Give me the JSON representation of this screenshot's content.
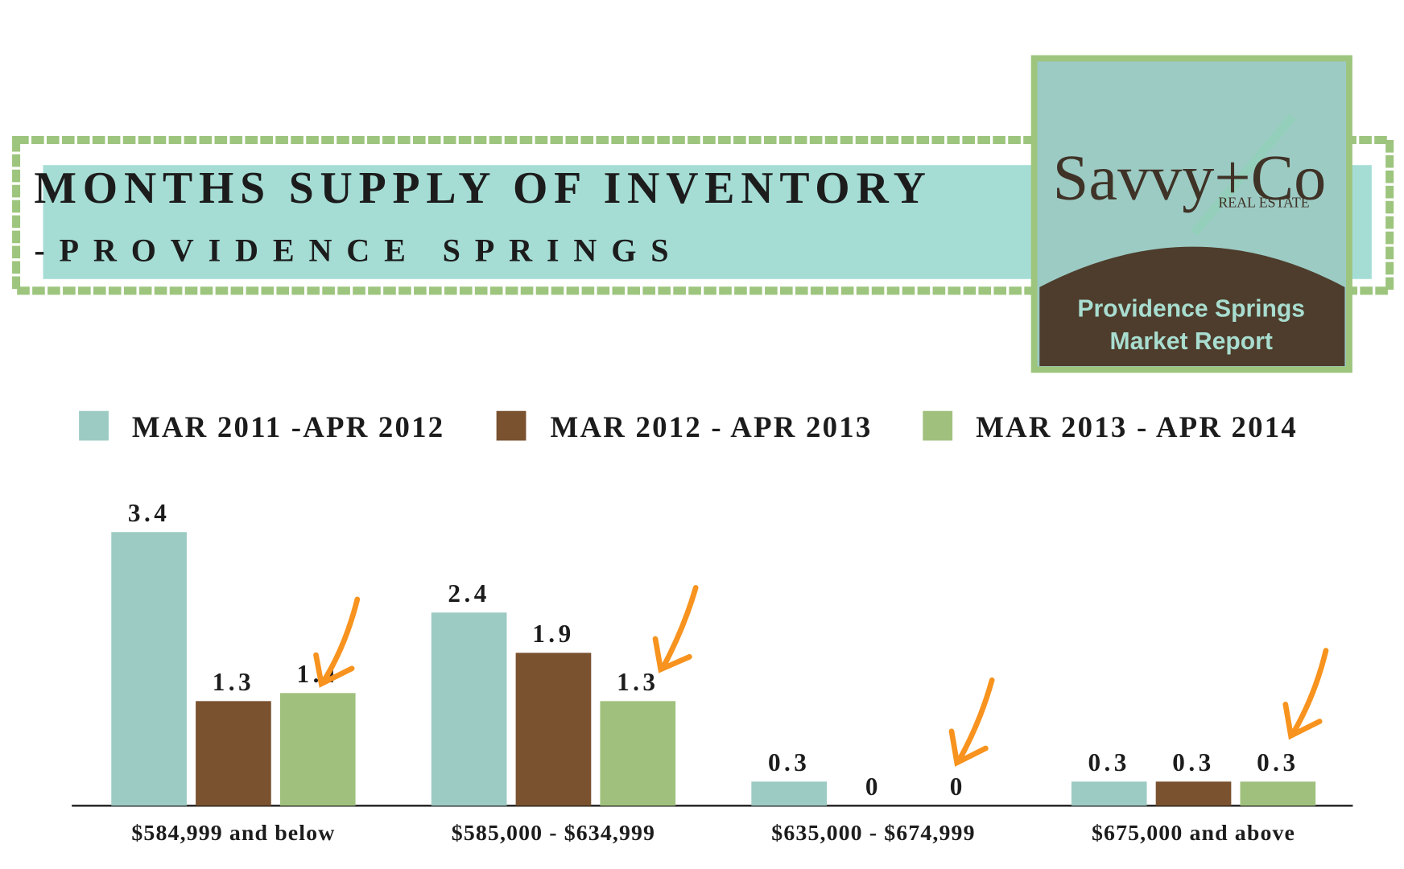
{
  "chart_data": {
    "type": "bar",
    "title": "MONTHS SUPPLY OF INVENTORY",
    "subtitle": "-PROVIDENCE SPRINGS",
    "categories": [
      "$584,999 and below",
      "$585,000 - $634,999",
      "$635,000 - $674,999",
      "$675,000 and above"
    ],
    "series": [
      {
        "name": "MAR 2011 -APR 2012",
        "color": "#9ccbc4",
        "values": [
          3.4,
          2.4,
          0.3,
          0.3
        ]
      },
      {
        "name": "MAR 2012 - APR 2013",
        "color": "#7a5230",
        "values": [
          1.3,
          1.9,
          0,
          0.3
        ]
      },
      {
        "name": "MAR 2013 - APR 2014",
        "color": "#a0c17d",
        "values": [
          1.4,
          1.3,
          0,
          0.3
        ]
      }
    ],
    "legend": "top"
  },
  "logo": {
    "brand": "Savvy+Co",
    "tagline": "REAL ESTATE",
    "report_line1": "Providence Springs",
    "report_line2": "Market Report"
  }
}
